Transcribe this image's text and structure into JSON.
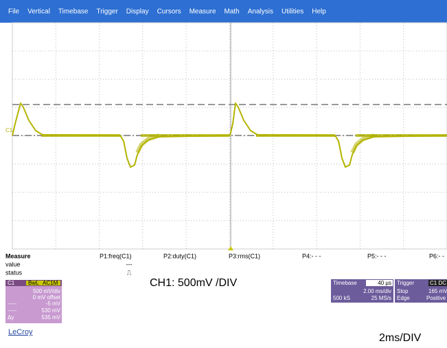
{
  "menu": {
    "items": [
      "File",
      "Vertical",
      "Timebase",
      "Trigger",
      "Display",
      "Cursors",
      "Measure",
      "Math",
      "Analysis",
      "Utilities",
      "Help"
    ]
  },
  "screen": {
    "channel_marker": "C1"
  },
  "measure": {
    "title": "Measure",
    "row_labels": [
      "value",
      "status"
    ],
    "params": [
      "P1:freq(C1)",
      "P2:duty(C1)",
      "P3:rms(C1)",
      "P4:- - -",
      "P5:- - -",
      "P6:- -"
    ],
    "p1_value": "---",
    "p1_status": "⎍"
  },
  "channel_box": {
    "name": "C1",
    "bwl": "BwL",
    "coupling": "AC1M",
    "scale": "500 mV/div",
    "offset": "0 mV offset",
    "cursor1_label": "-----",
    "cursor1": "-5 mV",
    "cursor2_label": "-----",
    "cursor2": "530 mV",
    "delta_label": "Δy",
    "delta": "535 mV"
  },
  "timebase_box": {
    "title": "Timebase",
    "delay": "40 µs",
    "scale": "2.00 ms/div",
    "samples": "500 kS",
    "rate": "25 MS/s"
  },
  "trigger_box": {
    "title": "Trigger",
    "source": "C1 DC",
    "mode": "Stop",
    "level": "165 mV",
    "type": "Edge",
    "slope": "Positive"
  },
  "annotations": {
    "vertical": "CH1: 500mV /DIV",
    "horizontal": "2ms/DIV"
  },
  "brand": "LeCroy"
}
